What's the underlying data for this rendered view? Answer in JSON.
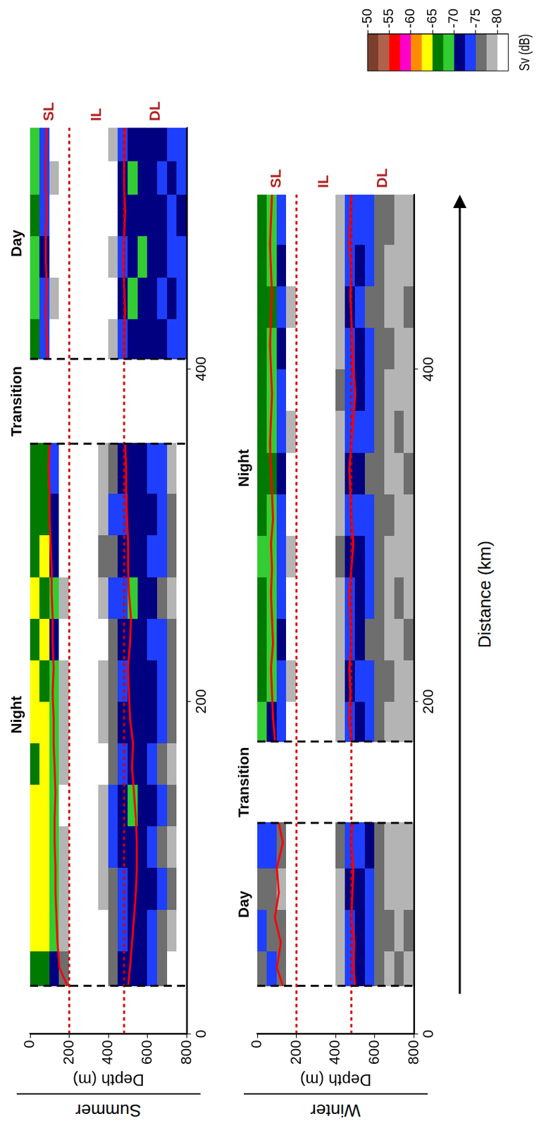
{
  "chart_data": [
    {
      "type": "heatmap",
      "title": "Summer",
      "y_label": "Depth (m)",
      "xlim": [
        0,
        545
      ],
      "xticks": [
        0,
        200,
        400
      ],
      "ylim": [
        0,
        800
      ],
      "yticks": [
        0,
        200,
        400,
        600,
        800
      ],
      "grid": false,
      "periods": [
        {
          "label": "Night",
          "from": 29,
          "to": 355
        },
        {
          "label": "Transition",
          "from": 355,
          "to": 406
        },
        {
          "label": "Day",
          "from": 406,
          "to": 545
        }
      ],
      "layer_labels": [
        "SL",
        "IL",
        "DL"
      ],
      "layer_boundaries": [
        200,
        480
      ],
      "distance_edges": [
        0,
        29,
        50,
        75,
        100,
        125,
        150,
        175,
        200,
        225,
        250,
        275,
        300,
        325,
        355,
        406,
        430,
        455,
        480,
        505,
        525,
        545
      ],
      "depth_edges": [
        0,
        50,
        100,
        150,
        200,
        250,
        300,
        350,
        400,
        450,
        500,
        550,
        600,
        650,
        700,
        750,
        800
      ],
      "sv": [
        [
          null,
          -65,
          -64,
          -64,
          -63,
          -64,
          -65,
          -64,
          -64,
          -65,
          -64,
          -65,
          -66,
          -66,
          null,
          -67,
          -68,
          -68,
          -67,
          -68,
          -69
        ],
        [
          null,
          -66,
          -64,
          -63,
          -64,
          -63,
          -64,
          -64,
          -65,
          -64,
          -65,
          -64,
          -65,
          -67,
          null,
          -73,
          -73,
          -72,
          -73,
          -74,
          -73
        ],
        [
          null,
          -71,
          -68,
          -68,
          -69,
          -68,
          -69,
          -68,
          -69,
          -70,
          -69,
          -70,
          -71,
          -73,
          null,
          -80,
          -79,
          -81,
          -80,
          -79,
          -80
        ],
        [
          null,
          -76,
          -78,
          -79,
          -78,
          -80,
          -79,
          -79,
          -78,
          -80,
          -79,
          -80,
          -81,
          -82,
          null,
          -83,
          -84,
          -83,
          -84,
          -83,
          -84
        ],
        [
          null,
          -82,
          -83,
          -84,
          -83,
          -82,
          -83,
          -81,
          -82,
          -83,
          -84,
          -83,
          -84,
          -84,
          null,
          -85,
          -85,
          -84,
          -85,
          -85,
          -84
        ],
        [
          null,
          -83,
          -84,
          -83,
          -82,
          -83,
          -81,
          -82,
          -83,
          -84,
          -83,
          -84,
          -83,
          -84,
          null,
          -85,
          -84,
          -85,
          -85,
          -84,
          -85
        ],
        [
          null,
          -82,
          -83,
          -82,
          -81,
          -80,
          -82,
          -81,
          -80,
          -82,
          -83,
          -82,
          -81,
          -82,
          null,
          -84,
          -85,
          -84,
          -84,
          -85,
          -84
        ],
        [
          null,
          -80,
          -81,
          -79,
          -78,
          -79,
          -80,
          -78,
          -79,
          -80,
          -78,
          -77,
          -78,
          -79,
          null,
          -84,
          -83,
          -84,
          -84,
          -83,
          -84
        ],
        [
          null,
          -75,
          -76,
          -77,
          -74,
          -73,
          -76,
          -77,
          -76,
          -75,
          -74,
          -75,
          -74,
          -75,
          null,
          -79,
          -80,
          -79,
          -81,
          -80,
          -79
        ],
        [
          null,
          -72,
          -74,
          -73,
          -72,
          -71,
          -73,
          -72,
          -73,
          -72,
          -73,
          -72,
          -73,
          -72,
          null,
          -73,
          -72,
          -73,
          -72,
          -72,
          -73
        ],
        [
          null,
          -70,
          -71,
          -72,
          -70,
          -69,
          -71,
          -70,
          -71,
          -70,
          -69,
          -70,
          -71,
          -71,
          null,
          -71,
          -69,
          -70,
          -71,
          -69,
          -70
        ],
        [
          null,
          -72,
          -72,
          -71,
          -72,
          -71,
          -70,
          -71,
          -72,
          -71,
          -72,
          -71,
          -70,
          -72,
          null,
          -70,
          -71,
          -69,
          -70,
          -71,
          -71
        ],
        [
          null,
          -74,
          -73,
          -72,
          -73,
          -72,
          -73,
          -72,
          -71,
          -73,
          -72,
          -73,
          -72,
          -73,
          null,
          -72,
          -71,
          -72,
          -70,
          -72,
          -71
        ],
        [
          null,
          -77,
          -75,
          -74,
          -75,
          -74,
          -75,
          -74,
          -73,
          -74,
          -75,
          -74,
          -73,
          -74,
          null,
          -72,
          -73,
          -72,
          -71,
          -73,
          -72
        ],
        [
          null,
          -80,
          -78,
          -77,
          -78,
          -77,
          -78,
          -77,
          -76,
          -77,
          -78,
          -77,
          -76,
          -78,
          null,
          -73,
          -72,
          -74,
          -73,
          -72,
          -73
        ],
        [
          null,
          -84,
          -83,
          -82,
          -83,
          -82,
          -81,
          -82,
          -83,
          -82,
          -81,
          -83,
          -82,
          -82,
          null,
          -74,
          -73,
          -74,
          -72,
          -74,
          -73
        ]
      ],
      "series": [
        {
          "name": "SL",
          "color": "#ff0000",
          "line_style": "solid",
          "x": [
            29,
            40,
            55,
            70,
            85,
            100,
            115,
            130,
            145,
            160,
            175,
            190,
            205,
            220,
            235,
            250,
            265,
            280,
            295,
            310,
            325,
            340,
            355,
            380,
            406,
            420,
            435,
            450,
            465,
            480,
            495,
            510,
            525,
            545
          ],
          "values": [
            190,
            150,
            140,
            135,
            130,
            130,
            125,
            125,
            130,
            125,
            120,
            120,
            115,
            120,
            115,
            115,
            110,
            110,
            105,
            100,
            100,
            95,
            100,
            null,
            90,
            85,
            80,
            85,
            80,
            80,
            85,
            80,
            80,
            85
          ]
        },
        {
          "name": "DL",
          "color": "#ff0000",
          "line_style": "solid",
          "x": [
            29,
            40,
            55,
            70,
            85,
            100,
            115,
            130,
            145,
            160,
            175,
            190,
            205,
            220,
            235,
            250,
            265,
            280,
            295,
            310,
            325,
            340,
            355,
            380,
            406,
            420,
            435,
            450,
            465,
            480,
            495,
            510,
            525,
            545
          ],
          "values": [
            500,
            510,
            520,
            530,
            540,
            545,
            545,
            540,
            530,
            520,
            525,
            510,
            505,
            500,
            510,
            515,
            505,
            500,
            500,
            495,
            490,
            490,
            485,
            null,
            480,
            480,
            485,
            480,
            475,
            480,
            485,
            480,
            480,
            485
          ]
        }
      ],
      "colorbar": {
        "label": "Sv (dB)",
        "range": [
          -82.5,
          -50
        ],
        "ticks": [
          -50,
          -55,
          -60,
          -65,
          -70,
          -75,
          -80
        ],
        "colors": [
          "#7b3f2e",
          "#b0624a",
          "#ff0000",
          "#ff00cc",
          "#ff8c00",
          "#ffff00",
          "#007a00",
          "#33cc33",
          "#000080",
          "#1f3fff",
          "#6e6e6e",
          "#b4b4b4",
          "#ffffff"
        ]
      }
    },
    {
      "type": "heatmap",
      "title": "Winter",
      "y_label": "Depth (m)",
      "x_label": "Distance (km)",
      "xlim": [
        0,
        505
      ],
      "xticks": [
        0,
        200,
        400
      ],
      "ylim": [
        0,
        800
      ],
      "yticks": [
        0,
        200,
        400,
        600,
        800
      ],
      "grid": false,
      "periods": [
        {
          "label": "Day",
          "from": 29,
          "to": 127
        },
        {
          "label": "Transition",
          "from": 127,
          "to": 176
        },
        {
          "label": "Night",
          "from": 176,
          "to": 505
        }
      ],
      "layer_labels": [
        "SL",
        "IL",
        "DL"
      ],
      "layer_boundaries": [
        200,
        480
      ],
      "distance_edges": [
        0,
        29,
        50,
        75,
        100,
        127,
        176,
        200,
        225,
        250,
        275,
        300,
        325,
        350,
        375,
        400,
        425,
        450,
        475,
        505
      ],
      "depth_edges": [
        0,
        50,
        100,
        150,
        200,
        250,
        300,
        350,
        400,
        450,
        500,
        550,
        600,
        650,
        700,
        750,
        800
      ],
      "sv": [
        [
          null,
          -75,
          -74,
          -76,
          -74,
          null,
          -68,
          -67,
          -66,
          -67,
          -68,
          -66,
          -67,
          -66,
          -67,
          -66,
          -67,
          -66,
          -67
        ],
        [
          null,
          -74,
          -76,
          -75,
          -73,
          null,
          -70,
          -68,
          -69,
          -68,
          -69,
          -68,
          -67,
          -68,
          -69,
          -68,
          -67,
          -68,
          -68
        ],
        [
          null,
          -77,
          -76,
          -78,
          -75,
          null,
          -74,
          -73,
          -72,
          -73,
          -74,
          -73,
          -72,
          -73,
          -74,
          -72,
          -73,
          -72,
          -73
        ],
        [
          null,
          -82,
          -81,
          -83,
          -80,
          null,
          -80,
          -79,
          -81,
          -80,
          -79,
          -80,
          -81,
          -79,
          -80,
          -81,
          -79,
          -80,
          -80
        ],
        [
          null,
          -85,
          -84,
          -85,
          -84,
          null,
          -84,
          -85,
          -84,
          -85,
          -84,
          -85,
          -84,
          -85,
          -84,
          -85,
          -84,
          -85,
          -84
        ],
        [
          null,
          -85,
          -85,
          -84,
          -85,
          null,
          -85,
          -84,
          -85,
          -84,
          -85,
          -84,
          -85,
          -84,
          -85,
          -84,
          -85,
          -84,
          -85
        ],
        [
          null,
          -84,
          -85,
          -85,
          -84,
          null,
          -84,
          -85,
          -84,
          -84,
          -85,
          -84,
          -85,
          -85,
          -84,
          -85,
          -84,
          -84,
          -85
        ],
        [
          null,
          -83,
          -84,
          -83,
          -84,
          null,
          -83,
          -84,
          -83,
          -84,
          -84,
          -83,
          -84,
          -83,
          -83,
          -84,
          -83,
          -84,
          -83
        ],
        [
          null,
          -78,
          -79,
          -78,
          -77,
          null,
          -79,
          -78,
          -79,
          -78,
          -77,
          -78,
          -79,
          -78,
          -77,
          -78,
          -79,
          -78,
          -79
        ],
        [
          null,
          -73,
          -74,
          -72,
          -73,
          null,
          -73,
          -72,
          -74,
          -73,
          -72,
          -73,
          -72,
          -73,
          -74,
          -73,
          -72,
          -73,
          -74
        ],
        [
          null,
          -72,
          -71,
          -72,
          -73,
          null,
          -72,
          -73,
          -72,
          -71,
          -72,
          -73,
          -72,
          -73,
          -72,
          -71,
          -73,
          -72,
          -73
        ],
        [
          null,
          -74,
          -73,
          -74,
          -72,
          null,
          -74,
          -73,
          -75,
          -74,
          -73,
          -74,
          -75,
          -73,
          -74,
          -73,
          -75,
          -74,
          -73
        ],
        [
          null,
          -76,
          -75,
          -77,
          -76,
          null,
          -76,
          -77,
          -76,
          -75,
          -77,
          -76,
          -77,
          -76,
          -75,
          -76,
          -77,
          -76,
          -75
        ],
        [
          null,
          -78,
          -77,
          -78,
          -79,
          null,
          -78,
          -77,
          -78,
          -79,
          -78,
          -77,
          -78,
          -79,
          -78,
          -77,
          -78,
          -78,
          -77
        ],
        [
          null,
          -77,
          -78,
          -79,
          -78,
          null,
          -78,
          -79,
          -78,
          -77,
          -78,
          -79,
          -78,
          -77,
          -78,
          -79,
          -78,
          -79,
          -78
        ],
        [
          null,
          -78,
          -77,
          -78,
          -79,
          null,
          -79,
          -78,
          -77,
          -78,
          -79,
          -78,
          -77,
          -78,
          -79,
          -78,
          -77,
          -78,
          -79
        ]
      ],
      "series": [
        {
          "name": "SL",
          "color": "#ff0000",
          "line_style": "solid",
          "x": [
            29,
            40,
            55,
            70,
            85,
            100,
            115,
            127,
            150,
            176,
            190,
            205,
            220,
            235,
            250,
            265,
            280,
            295,
            310,
            325,
            340,
            355,
            370,
            385,
            400,
            415,
            430,
            445,
            460,
            475,
            490,
            505
          ],
          "values": [
            130,
            100,
            120,
            90,
            110,
            100,
            130,
            110,
            null,
            90,
            80,
            75,
            70,
            80,
            75,
            70,
            75,
            70,
            80,
            75,
            70,
            65,
            70,
            75,
            70,
            65,
            70,
            75,
            70,
            65,
            70,
            75
          ]
        },
        {
          "name": "DL",
          "color": "#ff0000",
          "line_style": "solid",
          "x": [
            29,
            40,
            55,
            70,
            85,
            100,
            115,
            127,
            150,
            176,
            190,
            205,
            220,
            235,
            250,
            265,
            280,
            295,
            310,
            325,
            340,
            355,
            370,
            385,
            400,
            415,
            430,
            445,
            460,
            475,
            490,
            505
          ],
          "values": [
            500,
            490,
            495,
            480,
            485,
            490,
            480,
            485,
            null,
            480,
            470,
            475,
            470,
            480,
            475,
            470,
            480,
            490,
            480,
            475,
            470,
            480,
            490,
            500,
            490,
            485,
            480,
            475,
            480,
            470,
            475,
            480
          ]
        }
      ]
    }
  ]
}
